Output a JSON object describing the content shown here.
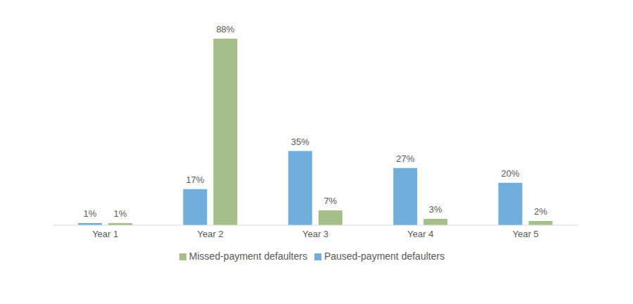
{
  "chart_data": {
    "type": "bar",
    "categories": [
      "Year 1",
      "Year 2",
      "Year 3",
      "Year 4",
      "Year 5"
    ],
    "series": [
      {
        "name": "Paused-payment defaulters",
        "color": "#72aedc",
        "values": [
          1,
          17,
          35,
          27,
          20
        ],
        "value_labels": [
          "1%",
          "17%",
          "35%",
          "27%",
          "20%"
        ]
      },
      {
        "name": "Missed-payment defaulters",
        "color": "#a5bf8b",
        "values": [
          1,
          88,
          7,
          3,
          2
        ],
        "value_labels": [
          "1%",
          "88%",
          "7%",
          "3%",
          "2%"
        ]
      }
    ],
    "ylim": [
      0,
      88
    ],
    "grid": false,
    "legend": "bottom",
    "data_labels": true,
    "tick_labels": "x"
  }
}
